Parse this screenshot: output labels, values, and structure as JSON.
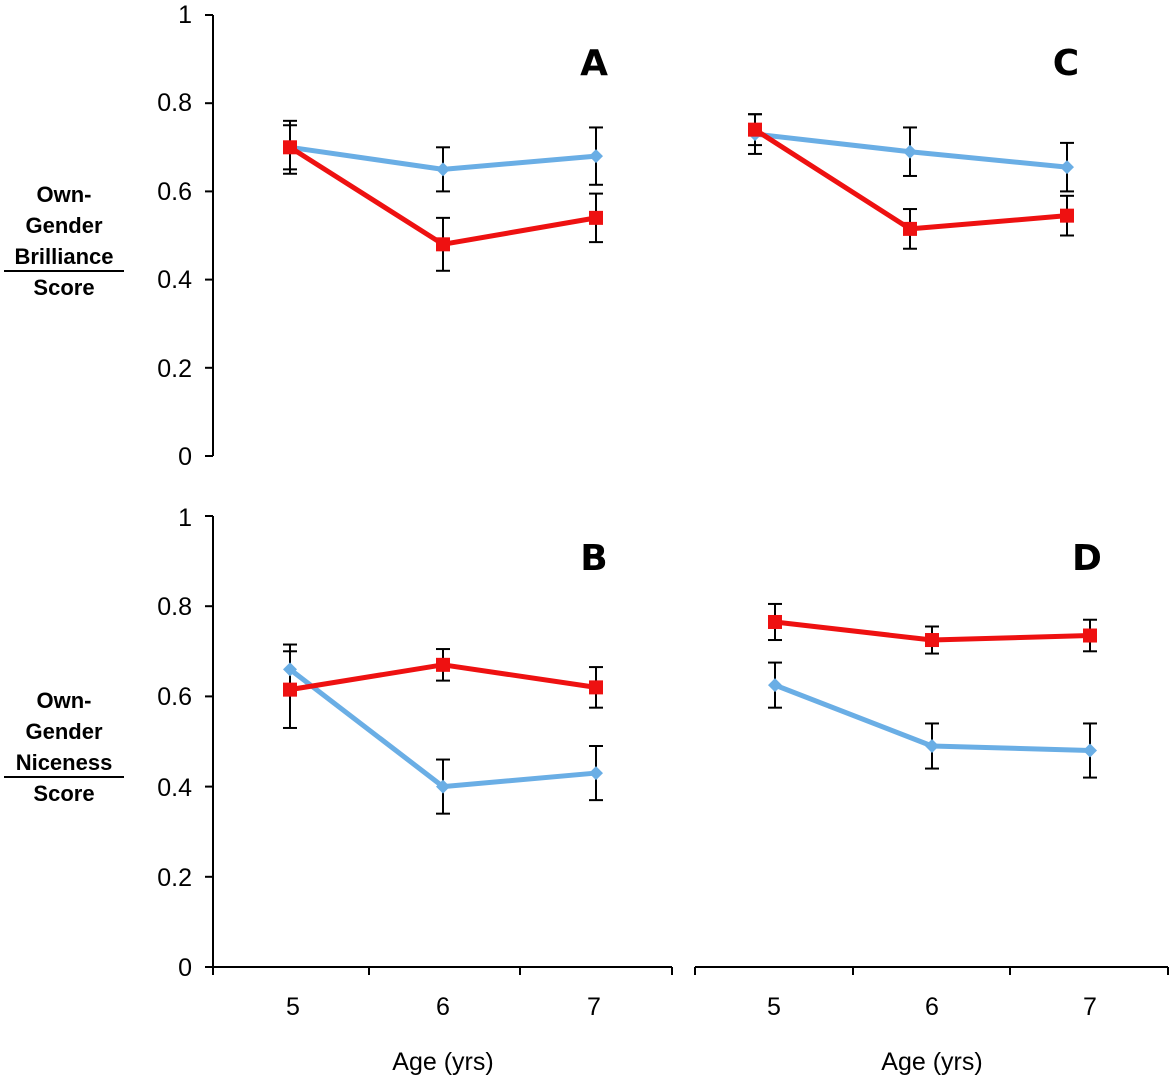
{
  "figure": {
    "ylabels": {
      "top": {
        "line1": "Own-",
        "line2": "Gender",
        "line3": "Brilliance",
        "line4": "Score"
      },
      "bottom": {
        "line1": "Own-",
        "line2": "Gender",
        "line3": "Niceness",
        "line4": "Score"
      }
    },
    "xlabel": "Age (yrs)",
    "ytick_labels": [
      "0",
      "0.2",
      "0.4",
      "0.6",
      "0.8",
      "1"
    ],
    "xtick_labels": [
      "5",
      "6",
      "7"
    ]
  },
  "colors": {
    "blue_series": "#6aaee5",
    "red_series": "#ee1111",
    "axis": "#000000"
  },
  "chart_data": [
    {
      "panel": "A",
      "type": "line",
      "categories": [
        "5",
        "6",
        "7"
      ],
      "ylim": [
        0,
        1
      ],
      "xlabel": "",
      "series": [
        {
          "color": "blue",
          "marker": "diamond",
          "values": [
            0.7,
            0.65,
            0.68
          ],
          "errors": [
            0.06,
            0.05,
            0.065
          ]
        },
        {
          "color": "red",
          "marker": "square",
          "values": [
            0.7,
            0.48,
            0.54
          ],
          "errors": [
            0.05,
            0.06,
            0.055
          ]
        }
      ]
    },
    {
      "panel": "C",
      "type": "line",
      "categories": [
        "5",
        "6",
        "7"
      ],
      "ylim": [
        0,
        1
      ],
      "xlabel": "",
      "series": [
        {
          "color": "blue",
          "marker": "diamond",
          "values": [
            0.73,
            0.69,
            0.655
          ],
          "errors": [
            0.045,
            0.055,
            0.055
          ]
        },
        {
          "color": "red",
          "marker": "square",
          "values": [
            0.74,
            0.515,
            0.545
          ],
          "errors": [
            0.035,
            0.045,
            0.045
          ]
        }
      ]
    },
    {
      "panel": "B",
      "type": "line",
      "categories": [
        "5",
        "6",
        "7"
      ],
      "ylim": [
        0,
        1
      ],
      "xlabel": "Age (yrs)",
      "series": [
        {
          "color": "blue",
          "marker": "diamond",
          "values": [
            0.66,
            0.4,
            0.43
          ],
          "errors": [
            0.055,
            0.06,
            0.06
          ]
        },
        {
          "color": "red",
          "marker": "square",
          "values": [
            0.615,
            0.67,
            0.62
          ],
          "errors": [
            0.085,
            0.035,
            0.045
          ]
        }
      ]
    },
    {
      "panel": "D",
      "type": "line",
      "categories": [
        "5",
        "6",
        "7"
      ],
      "ylim": [
        0,
        1
      ],
      "xlabel": "Age (yrs)",
      "series": [
        {
          "color": "blue",
          "marker": "diamond",
          "values": [
            0.625,
            0.49,
            0.48
          ],
          "errors": [
            0.05,
            0.05,
            0.06
          ]
        },
        {
          "color": "red",
          "marker": "square",
          "values": [
            0.765,
            0.725,
            0.735
          ],
          "errors": [
            0.04,
            0.03,
            0.035
          ]
        }
      ]
    }
  ]
}
